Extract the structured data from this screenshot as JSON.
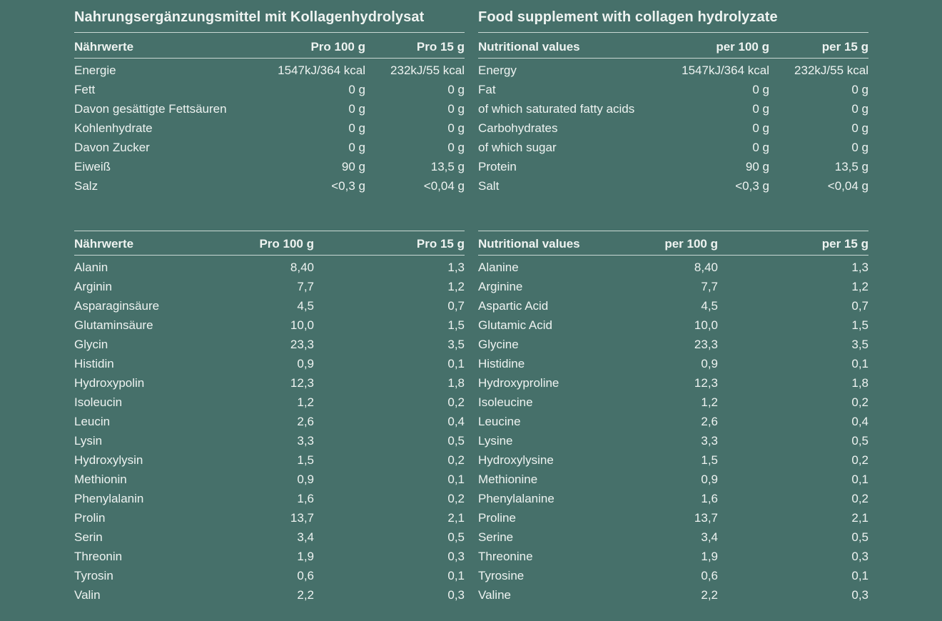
{
  "german": {
    "title": "Nahrungsergänzungsmittel mit Kollagenhydrolysat",
    "nutrition": {
      "headers": [
        "Nährwerte",
        "Pro 100 g",
        "Pro 15 g"
      ],
      "rows": [
        [
          "Energie",
          "1547kJ/364 kcal",
          "232kJ/55 kcal"
        ],
        [
          "Fett",
          "0 g",
          "0 g"
        ],
        [
          "Davon gesättigte Fettsäuren",
          "0 g",
          "0 g"
        ],
        [
          "Kohlenhydrate",
          "0 g",
          "0 g"
        ],
        [
          "Davon Zucker",
          "0 g",
          "0 g"
        ],
        [
          "Eiweiß",
          "90 g",
          "13,5 g"
        ],
        [
          "Salz",
          "<0,3 g",
          "<0,04 g"
        ]
      ]
    },
    "amino": {
      "headers": [
        "Nährwerte",
        "Pro 100 g",
        "Pro 15 g"
      ],
      "rows": [
        [
          "Alanin",
          "8,40",
          "1,3"
        ],
        [
          "Arginin",
          "7,7",
          "1,2"
        ],
        [
          "Asparaginsäure",
          "4,5",
          "0,7"
        ],
        [
          "Glutaminsäure",
          "10,0",
          "1,5"
        ],
        [
          "Glycin",
          "23,3",
          "3,5"
        ],
        [
          "Histidin",
          "0,9",
          "0,1"
        ],
        [
          "Hydroxypolin",
          "12,3",
          "1,8"
        ],
        [
          "Isoleucin",
          "1,2",
          "0,2"
        ],
        [
          "Leucin",
          "2,6",
          "0,4"
        ],
        [
          "Lysin",
          "3,3",
          "0,5"
        ],
        [
          "Hydroxylysin",
          "1,5",
          "0,2"
        ],
        [
          "Methionin",
          "0,9",
          "0,1"
        ],
        [
          "Phenylalanin",
          "1,6",
          "0,2"
        ],
        [
          "Prolin",
          "13,7",
          "2,1"
        ],
        [
          "Serin",
          "3,4",
          "0,5"
        ],
        [
          "Threonin",
          "1,9",
          "0,3"
        ],
        [
          "Tyrosin",
          "0,6",
          "0,1"
        ],
        [
          "Valin",
          "2,2",
          "0,3"
        ]
      ]
    }
  },
  "english": {
    "title": "Food supplement with collagen hydrolyzate",
    "nutrition": {
      "headers": [
        "Nutritional values",
        "per 100 g",
        "per 15 g"
      ],
      "rows": [
        [
          "Energy",
          "1547kJ/364 kcal",
          "232kJ/55 kcal"
        ],
        [
          "Fat",
          "0 g",
          "0 g"
        ],
        [
          "of which saturated fatty acids",
          "0 g",
          "0 g"
        ],
        [
          "Carbohydrates",
          "0 g",
          "0 g"
        ],
        [
          "of which sugar",
          "0 g",
          "0 g"
        ],
        [
          "Protein",
          "90 g",
          "13,5 g"
        ],
        [
          "Salt",
          "<0,3 g",
          "<0,04 g"
        ]
      ]
    },
    "amino": {
      "headers": [
        "Nutritional values",
        "per 100 g",
        "per 15 g"
      ],
      "rows": [
        [
          "Alanine",
          "8,40",
          "1,3"
        ],
        [
          "Arginine",
          "7,7",
          "1,2"
        ],
        [
          "Aspartic Acid",
          "4,5",
          "0,7"
        ],
        [
          "Glutamic Acid",
          "10,0",
          "1,5"
        ],
        [
          "Glycine",
          "23,3",
          "3,5"
        ],
        [
          "Histidine",
          "0,9",
          "0,1"
        ],
        [
          "Hydroxyproline",
          "12,3",
          "1,8"
        ],
        [
          "Isoleucine",
          "1,2",
          "0,2"
        ],
        [
          "Leucine",
          "2,6",
          "0,4"
        ],
        [
          "Lysine",
          "3,3",
          "0,5"
        ],
        [
          "Hydroxylysine",
          "1,5",
          "0,2"
        ],
        [
          "Methionine",
          "0,9",
          "0,1"
        ],
        [
          "Phenylalanine",
          "1,6",
          "0,2"
        ],
        [
          "Proline",
          "13,7",
          "2,1"
        ],
        [
          "Serine",
          "3,4",
          "0,5"
        ],
        [
          "Threonine",
          "1,9",
          "0,3"
        ],
        [
          "Tyrosine",
          "0,6",
          "0,1"
        ],
        [
          "Valine",
          "2,2",
          "0,3"
        ]
      ]
    }
  }
}
